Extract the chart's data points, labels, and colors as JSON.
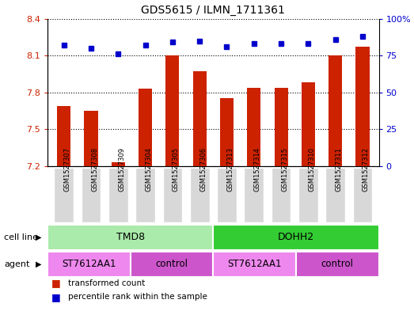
{
  "title": "GDS5615 / ILMN_1711361",
  "samples": [
    "GSM1527307",
    "GSM1527308",
    "GSM1527309",
    "GSM1527304",
    "GSM1527305",
    "GSM1527306",
    "GSM1527313",
    "GSM1527314",
    "GSM1527315",
    "GSM1527310",
    "GSM1527311",
    "GSM1527312"
  ],
  "bar_values": [
    7.69,
    7.65,
    7.23,
    7.83,
    8.1,
    7.97,
    7.75,
    7.84,
    7.84,
    7.88,
    8.1,
    8.17
  ],
  "dot_values": [
    82,
    80,
    76,
    82,
    84,
    85,
    81,
    83,
    83,
    83,
    86,
    88
  ],
  "y_min": 7.2,
  "y_max": 8.4,
  "y_ticks": [
    7.2,
    7.5,
    7.8,
    8.1,
    8.4
  ],
  "y2_ticks": [
    0,
    25,
    50,
    75,
    100
  ],
  "bar_color": "#cc2200",
  "dot_color": "#0000cc",
  "cell_line_row": [
    {
      "label": "TMD8",
      "start": 0,
      "end": 6,
      "color": "#aaeaaa"
    },
    {
      "label": "DOHH2",
      "start": 6,
      "end": 12,
      "color": "#33cc33"
    }
  ],
  "agent_row": [
    {
      "label": "ST7612AA1",
      "start": 0,
      "end": 3,
      "color": "#ee88ee"
    },
    {
      "label": "control",
      "start": 3,
      "end": 6,
      "color": "#cc55cc"
    },
    {
      "label": "ST7612AA1",
      "start": 6,
      "end": 9,
      "color": "#ee88ee"
    },
    {
      "label": "control",
      "start": 9,
      "end": 12,
      "color": "#cc55cc"
    }
  ],
  "legend_transformed": "transformed count",
  "legend_percentile": "percentile rank within the sample",
  "cell_line_label": "cell line",
  "agent_label": "agent"
}
